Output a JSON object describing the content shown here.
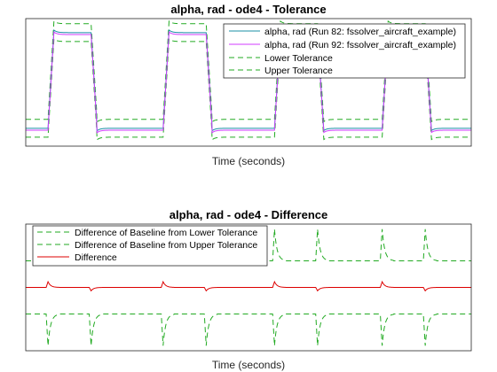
{
  "chart_data": [
    {
      "type": "line",
      "title": "alpha, rad - ode4 - Tolerance",
      "xlabel": "Time (seconds)",
      "ylabel": "",
      "xlim": [
        0,
        60
      ],
      "ylim": [
        -1,
        1
      ],
      "grid": false,
      "legend_position": "top-right",
      "wave": {
        "starts": [
          3,
          18.5,
          33.5,
          48
        ],
        "rise": 0.8,
        "fall": 0.8,
        "high_duration": 5,
        "overshoot": 0.04,
        "high_level": 0.78,
        "low_level": -0.72
      },
      "series": [
        {
          "name": "alpha, rad (Run 82: fssolver_aircraft_example)",
          "color": "#1a8fa6",
          "style": "solid",
          "values_from": "wave",
          "offset": 0
        },
        {
          "name": "alpha, rad (Run 92: fssolver_aircraft_example)",
          "color": "#d03bff",
          "style": "solid",
          "values_from": "wave",
          "offset": -0.03
        },
        {
          "name": "Lower Tolerance",
          "color": "#22aa22",
          "style": "dashed",
          "values_from": "wave",
          "offset": -0.14
        },
        {
          "name": "Upper Tolerance",
          "color": "#22aa22",
          "style": "dashed",
          "values_from": "wave",
          "offset": 0.14
        }
      ]
    },
    {
      "type": "line",
      "title": "alpha, rad - ode4 - Difference",
      "xlabel": "Time (seconds)",
      "ylabel": "",
      "xlim": [
        0,
        60
      ],
      "ylim": [
        -1,
        1
      ],
      "grid": false,
      "legend_position": "top-left",
      "spike_times": [
        3,
        8.8,
        18.5,
        24.3,
        33.5,
        39.3,
        48,
        53.8
      ],
      "series": [
        {
          "name": "Difference of Baseline from Lower Tolerance",
          "color": "#22aa22",
          "style": "dashed",
          "baseline": 0.42,
          "spike_height": 0.5
        },
        {
          "name": "Difference of Baseline from Upper Tolerance",
          "color": "#22aa22",
          "style": "dashed",
          "baseline": -0.42,
          "spike_height": -0.5
        },
        {
          "name": "Difference",
          "color": "#dd0000",
          "style": "solid",
          "baseline": 0.0,
          "spike_height": 0.09
        }
      ]
    }
  ]
}
